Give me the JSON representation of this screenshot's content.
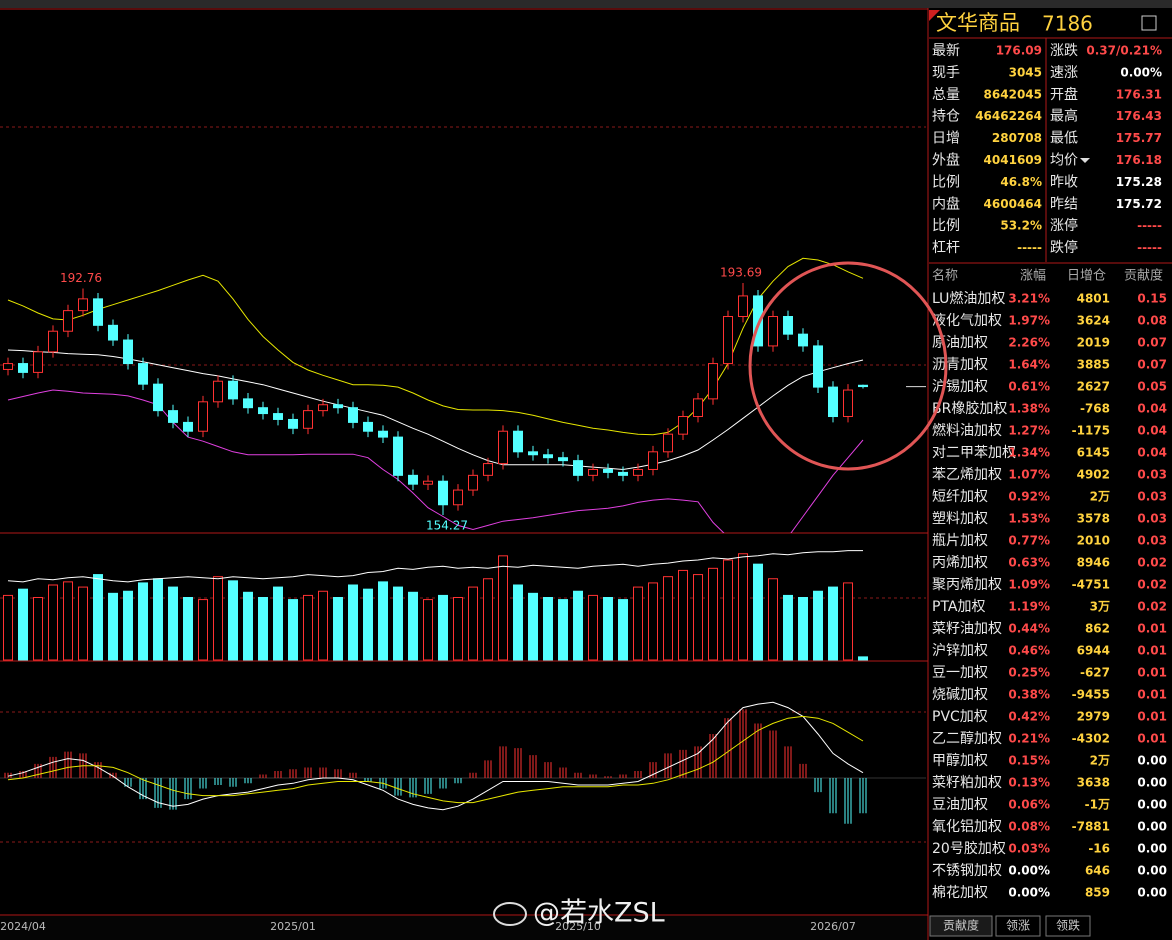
{
  "chart_data": {
    "type": "candlestick",
    "categories": [
      null,
      "2024/04",
      null,
      null,
      null,
      null,
      null,
      null,
      null,
      null,
      null,
      null,
      null,
      null,
      null,
      null,
      null,
      null,
      null,
      "2025/01",
      null,
      null,
      null,
      null,
      null,
      null,
      null,
      null,
      null,
      null,
      null,
      null,
      null,
      null,
      null,
      null,
      null,
      null,
      "2025/10",
      null,
      null,
      null,
      null,
      null,
      null,
      null,
      null,
      null,
      null,
      null,
      null,
      null,
      null,
      null,
      null,
      "2026/07",
      null,
      null
    ],
    "open": [
      179.0,
      180.0,
      178.5,
      182.0,
      185.5,
      189.0,
      191.0,
      186.5,
      184.0,
      180.0,
      176.5,
      172.0,
      170.0,
      168.5,
      173.5,
      177.0,
      174.0,
      172.5,
      171.5,
      170.5,
      169.0,
      172.0,
      173.0,
      172.5,
      170.0,
      168.5,
      167.5,
      161.0,
      159.5,
      160.0,
      156.0,
      158.5,
      161.0,
      163.0,
      168.5,
      165.0,
      164.5,
      164.0,
      163.5,
      161.0,
      162.0,
      161.5,
      161.0,
      162.0,
      165.0,
      168.0,
      171.0,
      174.0,
      180.0,
      188.0,
      191.5,
      183.0,
      188.0,
      185.0,
      183.0,
      176.0,
      171.0,
      176.31
    ],
    "high": [
      181.0,
      181.0,
      183.0,
      186.5,
      190.0,
      192.76,
      192.0,
      187.5,
      185.0,
      181.0,
      177.5,
      173.0,
      171.0,
      174.5,
      178.0,
      178.0,
      175.0,
      173.5,
      172.5,
      171.5,
      173.0,
      174.0,
      174.0,
      173.5,
      171.0,
      169.5,
      168.5,
      162.0,
      161.0,
      161.0,
      159.5,
      162.0,
      164.0,
      169.5,
      169.5,
      166.0,
      165.5,
      165.0,
      164.5,
      163.0,
      163.0,
      162.5,
      163.0,
      166.0,
      169.0,
      172.0,
      175.0,
      181.0,
      189.0,
      193.69,
      192.5,
      189.0,
      189.0,
      186.0,
      184.0,
      177.0,
      176.5,
      176.43
    ],
    "low": [
      178.0,
      177.5,
      177.5,
      181.0,
      184.5,
      188.0,
      185.5,
      183.0,
      179.0,
      175.5,
      171.0,
      169.0,
      167.5,
      167.5,
      172.5,
      173.0,
      171.5,
      170.5,
      169.5,
      168.0,
      168.0,
      171.0,
      171.5,
      169.0,
      167.5,
      166.5,
      160.0,
      158.5,
      158.5,
      154.27,
      155.0,
      157.5,
      160.0,
      162.0,
      164.0,
      163.5,
      163.0,
      162.5,
      160.0,
      160.0,
      160.5,
      160.0,
      160.0,
      161.0,
      164.0,
      167.0,
      170.0,
      173.0,
      179.0,
      187.0,
      182.0,
      182.0,
      184.0,
      182.0,
      175.0,
      170.0,
      170.0,
      175.77
    ],
    "close": [
      180.0,
      178.5,
      182.0,
      185.5,
      189.0,
      191.0,
      186.5,
      184.0,
      180.0,
      176.5,
      172.0,
      170.0,
      168.5,
      173.5,
      177.0,
      174.0,
      172.5,
      171.5,
      170.5,
      169.0,
      172.0,
      173.0,
      172.5,
      170.0,
      168.5,
      167.5,
      161.0,
      159.5,
      160.0,
      156.0,
      158.5,
      161.0,
      163.0,
      168.5,
      165.0,
      164.5,
      164.0,
      163.5,
      161.0,
      162.0,
      161.5,
      161.0,
      162.0,
      165.0,
      168.0,
      171.0,
      174.0,
      180.0,
      188.0,
      191.5,
      183.0,
      188.0,
      185.0,
      183.0,
      176.0,
      171.0,
      175.5,
      176.09
    ],
    "ylim": [
      151.2,
      240.1
    ],
    "up_color": "#ff3232",
    "down_color": "#54ffff",
    "overlays": [
      {
        "color": "#ffffff",
        "values": [
          182.3,
          182.2,
          182.0,
          181.9,
          181.7,
          181.6,
          181.5,
          181.2,
          180.8,
          180.3,
          179.8,
          179.3,
          178.8,
          178.3,
          177.9,
          177.4,
          176.9,
          176.4,
          175.7,
          175.0,
          174.3,
          173.6,
          173.0,
          172.4,
          171.8,
          171.2,
          170.1,
          169.0,
          168.0,
          166.8,
          165.6,
          164.5,
          163.5,
          162.8,
          162.8,
          162.8,
          162.8,
          162.8,
          162.6,
          162.4,
          162.2,
          162.0,
          162.4,
          162.9,
          163.5,
          164.3,
          165.3,
          167.0,
          168.8,
          170.7,
          172.6,
          174.5,
          176.3,
          177.8,
          178.6,
          179.3,
          180.0,
          180.6
        ]
      },
      {
        "color": "#e6e600",
        "values": [
          190.8,
          189.8,
          188.6,
          187.6,
          187.4,
          188.2,
          189.2,
          190.0,
          190.8,
          191.6,
          192.4,
          193.3,
          194.2,
          195.0,
          194.0,
          191.0,
          187.5,
          184.6,
          182.3,
          180.2,
          178.9,
          178.0,
          177.2,
          176.4,
          176.4,
          176.3,
          176.0,
          175.0,
          173.8,
          172.8,
          172.2,
          172.1,
          172.1,
          172.0,
          171.7,
          171.2,
          170.6,
          170.0,
          169.5,
          169.0,
          168.7,
          168.3,
          168.0,
          167.9,
          168.3,
          170.0,
          172.5,
          175.8,
          180.0,
          186.0,
          191.0,
          194.0,
          196.5,
          197.9,
          197.6,
          196.8,
          195.6,
          194.5
        ]
      },
      {
        "color": "#e040e0",
        "values": [
          173.8,
          174.4,
          175.0,
          175.5,
          175.3,
          175.0,
          174.9,
          174.8,
          174.5,
          173.8,
          173.0,
          170.0,
          167.5,
          166.8,
          165.9,
          165.0,
          164.5,
          164.5,
          164.5,
          164.5,
          164.6,
          164.6,
          164.6,
          164.6,
          164.0,
          162.0,
          160.3,
          158.0,
          155.5,
          154.0,
          152.5,
          151.8,
          152.5,
          153.2,
          153.5,
          153.8,
          154.2,
          154.6,
          155.0,
          155.2,
          155.4,
          155.8,
          156.4,
          156.8,
          157.0,
          156.8,
          156.5,
          153.0,
          150.5,
          149.0,
          148.5,
          149.0,
          150.5,
          154.0,
          157.5,
          161.0,
          164.0,
          167.0
        ]
      }
    ],
    "volume": {
      "ylim": [
        0,
        120
      ],
      "values": [
        62,
        68,
        60,
        72,
        75,
        70,
        82,
        64,
        66,
        74,
        78,
        70,
        60,
        58,
        80,
        76,
        65,
        60,
        70,
        58,
        62,
        66,
        60,
        72,
        68,
        75,
        70,
        65,
        58,
        62,
        60,
        70,
        78,
        100,
        72,
        64,
        60,
        58,
        66,
        62,
        60,
        58,
        70,
        74,
        80,
        86,
        82,
        88,
        96,
        102,
        92,
        78,
        62,
        60,
        66,
        70,
        74,
        3
      ],
      "line": {
        "color": "#ffffff",
        "values": [
          76,
          75,
          78,
          77,
          79,
          80,
          78,
          76,
          75,
          77,
          78,
          79,
          80,
          79,
          78,
          80,
          79,
          78,
          79,
          80,
          82,
          81,
          80,
          81,
          84,
          85,
          88,
          87,
          89,
          90,
          88,
          89,
          88,
          90,
          89,
          91,
          90,
          89,
          88,
          90,
          91,
          92,
          90,
          92,
          93,
          95,
          96,
          98,
          97,
          99,
          100,
          102,
          101,
          103,
          104,
          104,
          105,
          105
        ]
      }
    },
    "macd": {
      "ylim": [
        -5,
        5
      ],
      "values": [
        0.3,
        0.4,
        0.8,
        1.2,
        1.5,
        1.4,
        0.9,
        0.3,
        -0.5,
        -1.2,
        -1.7,
        -1.8,
        -1.2,
        -0.6,
        -0.4,
        -0.5,
        -0.3,
        0.2,
        0.4,
        0.5,
        0.6,
        0.6,
        0.5,
        0.3,
        -0.2,
        -0.6,
        -1.0,
        -1.1,
        -0.9,
        -0.6,
        -0.3,
        0.3,
        1.0,
        1.8,
        1.7,
        1.3,
        0.9,
        0.6,
        0.3,
        0.2,
        0.1,
        0.2,
        0.4,
        0.9,
        1.4,
        1.6,
        1.8,
        2.5,
        3.4,
        3.9,
        3.1,
        2.7,
        1.8,
        0.8,
        -0.8,
        -2.0,
        -2.6,
        -2.0
      ],
      "lines": [
        {
          "color": "#ffffff",
          "values": [
            0.1,
            0.3,
            0.6,
            0.9,
            1.1,
            1.0,
            0.6,
            0.1,
            -0.5,
            -1.0,
            -1.4,
            -1.6,
            -1.5,
            -1.2,
            -1.0,
            -0.9,
            -0.8,
            -0.6,
            -0.4,
            -0.3,
            -0.1,
            0.0,
            0.0,
            -0.1,
            -0.4,
            -0.7,
            -1.2,
            -1.5,
            -1.7,
            -1.8,
            -1.6,
            -1.2,
            -0.7,
            -0.2,
            -0.2,
            -0.2,
            -0.2,
            -0.3,
            -0.4,
            -0.4,
            -0.4,
            -0.3,
            -0.2,
            0.2,
            0.6,
            1.0,
            1.4,
            2.2,
            3.2,
            4.0,
            4.2,
            4.3,
            4.0,
            3.5,
            2.5,
            1.4,
            0.8,
            0.3
          ]
        },
        {
          "color": "#e6e600",
          "values": [
            -0.1,
            0.0,
            0.2,
            0.4,
            0.6,
            0.7,
            0.7,
            0.6,
            0.3,
            -0.1,
            -0.4,
            -0.7,
            -0.9,
            -1.0,
            -1.0,
            -1.0,
            -0.9,
            -0.8,
            -0.7,
            -0.6,
            -0.4,
            -0.3,
            -0.2,
            -0.2,
            -0.2,
            -0.3,
            -0.6,
            -0.9,
            -1.1,
            -1.3,
            -1.4,
            -1.4,
            -1.2,
            -1.0,
            -0.8,
            -0.7,
            -0.6,
            -0.5,
            -0.5,
            -0.5,
            -0.5,
            -0.4,
            -0.4,
            -0.3,
            -0.1,
            0.2,
            0.5,
            0.9,
            1.5,
            2.1,
            2.7,
            3.1,
            3.4,
            3.5,
            3.4,
            3.1,
            2.6,
            2.1
          ]
        }
      ]
    }
  },
  "quote": {
    "title": "文华商品",
    "code": "7186",
    "rows": [
      [
        "最新",
        "176.09",
        "涨跌",
        "0.37/0.21%"
      ],
      [
        "现手",
        "3045",
        "速涨",
        "0.00%"
      ],
      [
        "总量",
        "8642045",
        "开盘",
        "176.31"
      ],
      [
        "持仓",
        "46462264",
        "最高",
        "176.43"
      ],
      [
        "日增",
        "280708",
        "最低",
        "175.77"
      ],
      [
        "外盘",
        "4041609",
        "均价",
        "176.18"
      ],
      [
        "比例",
        "46.8%",
        "昨收",
        "175.28"
      ],
      [
        "内盘",
        "4600464",
        "昨结",
        "175.72"
      ],
      [
        "比例",
        "53.2%",
        "涨停",
        "-----"
      ],
      [
        "杠杆",
        "-----",
        "跌停",
        "-----"
      ]
    ]
  },
  "ranking": {
    "columns": [
      "名称",
      "涨幅",
      "日增仓",
      "贡献度"
    ],
    "rows": [
      [
        "LU燃油加权",
        "3.21%",
        "4801",
        "0.15"
      ],
      [
        "液化气加权",
        "1.97%",
        "3624",
        "0.08"
      ],
      [
        "原油加权",
        "2.26%",
        "2019",
        "0.07"
      ],
      [
        "沥青加权",
        "1.64%",
        "3885",
        "0.07"
      ],
      [
        "沪锡加权",
        "0.61%",
        "2627",
        "0.05"
      ],
      [
        "BR橡胶加权",
        "1.38%",
        "-768",
        "0.04"
      ],
      [
        "燃料油加权",
        "1.27%",
        "-1175",
        "0.04"
      ],
      [
        "对二甲苯加权",
        "1.34%",
        "6145",
        "0.04"
      ],
      [
        "苯乙烯加权",
        "1.07%",
        "4902",
        "0.03"
      ],
      [
        "短纤加权",
        "0.92%",
        "2万",
        "0.03"
      ],
      [
        "塑料加权",
        "1.53%",
        "3578",
        "0.03"
      ],
      [
        "瓶片加权",
        "0.77%",
        "2010",
        "0.03"
      ],
      [
        "丙烯加权",
        "0.63%",
        "8946",
        "0.02"
      ],
      [
        "聚丙烯加权",
        "1.09%",
        "-4751",
        "0.02"
      ],
      [
        "PTA加权",
        "1.19%",
        "3万",
        "0.02"
      ],
      [
        "菜籽油加权",
        "0.44%",
        "862",
        "0.01"
      ],
      [
        "沪锌加权",
        "0.46%",
        "6944",
        "0.01"
      ],
      [
        "豆一加权",
        "0.25%",
        "-627",
        "0.01"
      ],
      [
        "烧碱加权",
        "0.38%",
        "-9455",
        "0.01"
      ],
      [
        "PVC加权",
        "0.42%",
        "2979",
        "0.01"
      ],
      [
        "乙二醇加权",
        "0.21%",
        "-4302",
        "0.01"
      ],
      [
        "甲醇加权",
        "0.15%",
        "2万",
        "0.00"
      ],
      [
        "菜籽粕加权",
        "0.13%",
        "3638",
        "0.00"
      ],
      [
        "豆油加权",
        "0.06%",
        "-1万",
        "0.00"
      ],
      [
        "氧化铝加权",
        "0.08%",
        "-7881",
        "0.00"
      ],
      [
        "20号胶加权",
        "0.03%",
        "-16",
        "0.00"
      ],
      [
        "不锈钢加权",
        "0.00%",
        "646",
        "0.00"
      ],
      [
        "棉花加权",
        "0.00%",
        "859",
        "0.00"
      ]
    ]
  },
  "tabs": [
    "贡献度",
    "领涨",
    "领跌"
  ],
  "watermark": "@若水ZSL"
}
